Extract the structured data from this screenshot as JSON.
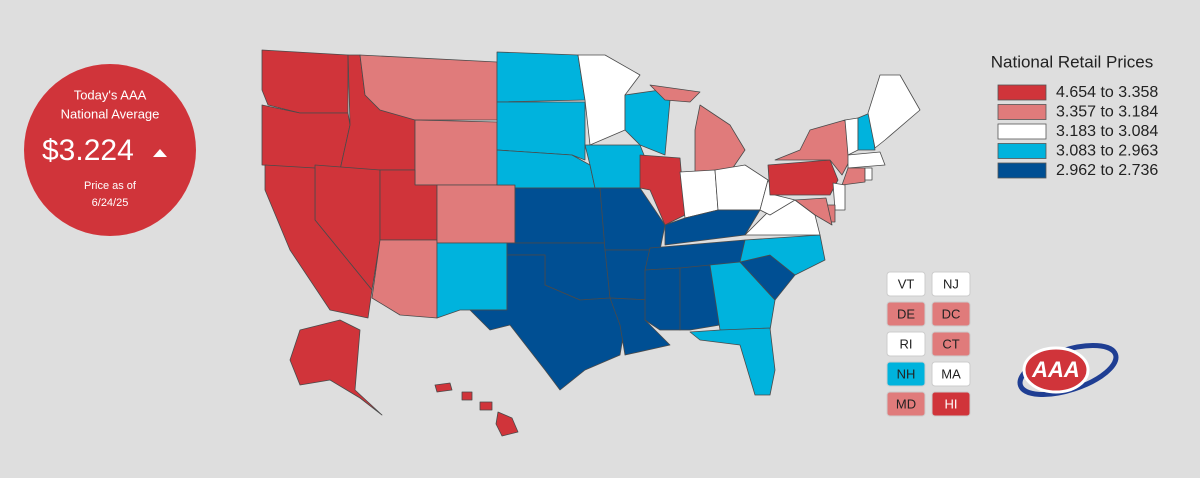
{
  "badge": {
    "line1": "Today's AAA",
    "line2": "National Average",
    "price": "$3.224",
    "asof_label": "Price as of",
    "date": "6/24/25"
  },
  "legend": {
    "title": "National Retail Prices",
    "items": [
      {
        "label": "4.654 to 3.358",
        "color": "#d0343a"
      },
      {
        "label": "3.357 to 3.184",
        "color": "#e07b7b"
      },
      {
        "label": "3.183 to 3.084",
        "color": "#ffffff"
      },
      {
        "label": "3.083 to 2.963",
        "color": "#00b3dd"
      },
      {
        "label": "2.962 to 2.736",
        "color": "#004f93"
      }
    ]
  },
  "small_states": [
    {
      "label": "VT",
      "color": "#ffffff"
    },
    {
      "label": "NJ",
      "color": "#ffffff"
    },
    {
      "label": "DE",
      "color": "#e07b7b"
    },
    {
      "label": "DC",
      "color": "#e07b7b"
    },
    {
      "label": "RI",
      "color": "#ffffff"
    },
    {
      "label": "CT",
      "color": "#e07b7b"
    },
    {
      "label": "NH",
      "color": "#00b3dd"
    },
    {
      "label": "MA",
      "color": "#ffffff"
    },
    {
      "label": "MD",
      "color": "#e07b7b"
    },
    {
      "label": "HI",
      "color": "#d0343a"
    }
  ],
  "logo": "AAA"
}
